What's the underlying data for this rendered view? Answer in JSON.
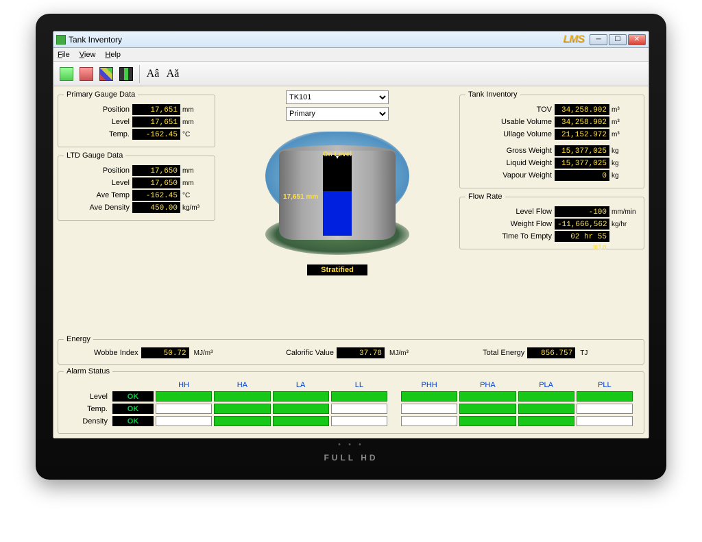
{
  "window": {
    "title": "Tank Inventory",
    "logo": "LMS"
  },
  "menu": {
    "file": "File",
    "view": "View",
    "help": "Help"
  },
  "monitor_label": "FULL HD",
  "dropdowns": {
    "tank_id": "TK101",
    "gauge_mode": "Primary"
  },
  "primary_gauge": {
    "legend": "Primary Gauge Data",
    "position": {
      "label": "Position",
      "value": "17,651",
      "unit": "mm"
    },
    "level": {
      "label": "Level",
      "value": "17,651",
      "unit": "mm"
    },
    "temp": {
      "label": "Temp.",
      "value": "-162.45",
      "unit": "°C"
    }
  },
  "ltd_gauge": {
    "legend": "LTD Gauge Data",
    "position": {
      "label": "Position",
      "value": "17,650",
      "unit": "mm"
    },
    "level": {
      "label": "Level",
      "value": "17,650",
      "unit": "mm"
    },
    "ave_temp": {
      "label": "Ave Temp",
      "value": "-162.45",
      "unit": "°C"
    },
    "ave_density": {
      "label": "Ave Density",
      "value": "450.00",
      "unit": "kg/m³"
    }
  },
  "tank_inventory": {
    "legend": "Tank Inventory",
    "tov": {
      "label": "TOV",
      "value": "34,258.902",
      "unit": "m³"
    },
    "usable_vol": {
      "label": "Usable Volume",
      "value": "34,258.902",
      "unit": "m³"
    },
    "ullage_vol": {
      "label": "Ullage Volume",
      "value": "21,152.972",
      "unit": "m³"
    },
    "gross_weight": {
      "label": "Gross Weight",
      "value": "15,377,025",
      "unit": "kg"
    },
    "liquid_weight": {
      "label": "Liquid Weight",
      "value": "15,377,025",
      "unit": "kg"
    },
    "vapour_weight": {
      "label": "Vapour Weight",
      "value": "0",
      "unit": "kg"
    }
  },
  "flow_rate": {
    "legend": "Flow Rate",
    "level_flow": {
      "label": "Level Flow",
      "value": "-100",
      "unit": "mm/min"
    },
    "weight_flow": {
      "label": "Weight Flow",
      "value": "-11,666,562",
      "unit": "kg/hr"
    },
    "time_empty": {
      "label": "Time To Empty",
      "value": "02 hr 55 min",
      "unit": ""
    }
  },
  "tank_visual": {
    "on_level_text": "On Level",
    "level_text": "17,651 mm",
    "stratified_text": "Stratified",
    "fill_percent": 55,
    "liquid_color": "#0020e0",
    "sky_color": "#6aa8d8",
    "ground_color": "#4a7048",
    "tank_color": "#a0a0a0"
  },
  "energy": {
    "legend": "Energy",
    "wobbe": {
      "label": "Wobbe Index",
      "value": "50.72",
      "unit": "MJ/m³"
    },
    "calorific": {
      "label": "Calorific Value",
      "value": "37.78",
      "unit": "MJ/m³"
    },
    "total": {
      "label": "Total Energy",
      "value": "856.757",
      "unit": "TJ"
    }
  },
  "alarm": {
    "legend": "Alarm Status",
    "headers": [
      "HH",
      "HA",
      "LA",
      "LL",
      "PHH",
      "PHA",
      "PLA",
      "PLL"
    ],
    "rows": [
      {
        "label": "Level",
        "ok": "OK",
        "cells": [
          true,
          true,
          true,
          true,
          true,
          true,
          true,
          true
        ]
      },
      {
        "label": "Temp.",
        "ok": "OK",
        "cells": [
          false,
          true,
          true,
          false,
          false,
          true,
          true,
          false
        ]
      },
      {
        "label": "Density",
        "ok": "OK",
        "cells": [
          false,
          true,
          true,
          false,
          false,
          true,
          true,
          false
        ]
      }
    ],
    "on_color": "#18c818",
    "off_color": "#ffffff"
  }
}
